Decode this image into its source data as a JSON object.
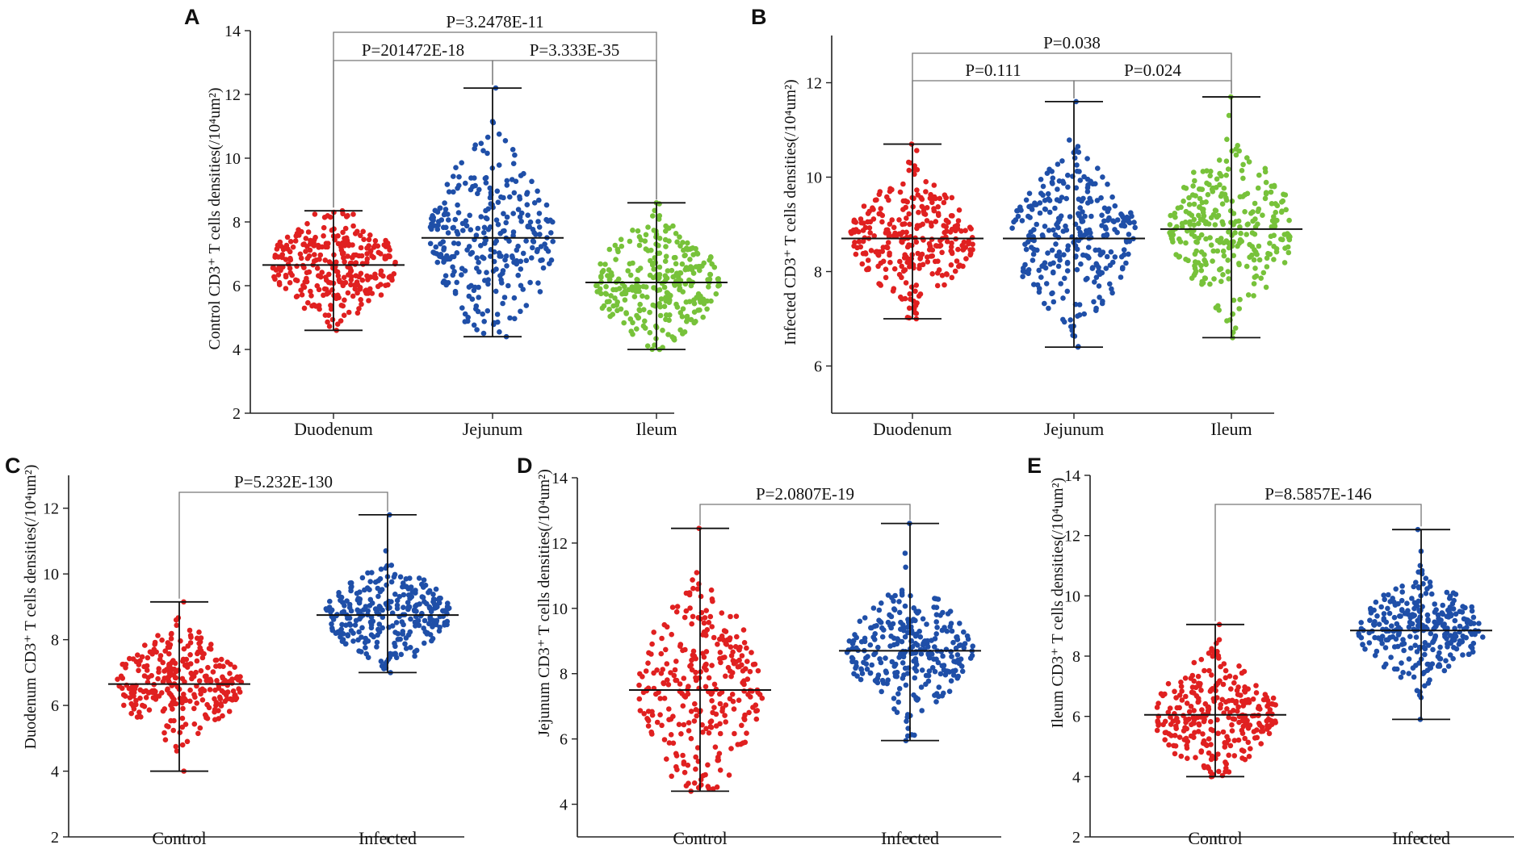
{
  "figure": {
    "colors": {
      "red": "#e02020",
      "blue": "#1f4fa8",
      "green": "#77c23a",
      "axis": "#222222",
      "bracket": "#777777"
    }
  },
  "chart_data": [
    {
      "id": "A",
      "panel": "A",
      "type": "scatter",
      "ylabel": "Control CD3⁺ T cells densities(/10⁴um²)",
      "ylim": [
        2,
        14
      ],
      "yticks": [
        2,
        4,
        6,
        8,
        10,
        12,
        14
      ],
      "categories": [
        "Duodenum",
        "Jejunum",
        "Ileum"
      ],
      "series": [
        {
          "name": "Duodenum",
          "color": "red",
          "mean": 6.65,
          "min": 4.6,
          "max": 8.35,
          "sd": 0.8,
          "n": 300
        },
        {
          "name": "Jejunum",
          "color": "blue",
          "mean": 7.5,
          "min": 4.4,
          "max": 12.2,
          "sd": 1.5,
          "n": 300
        },
        {
          "name": "Ileum",
          "color": "green",
          "mean": 6.1,
          "min": 4.0,
          "max": 8.6,
          "sd": 0.9,
          "n": 300
        }
      ],
      "comparisons": [
        {
          "from": 0,
          "to": 2,
          "label": "P=3.2478E-11",
          "level": 1
        },
        {
          "from": 0,
          "to": 1,
          "label": "P=201472E-18",
          "level": 0
        },
        {
          "from": 1,
          "to": 2,
          "label": "P=3.333E-35",
          "level": 0
        }
      ]
    },
    {
      "id": "B",
      "panel": "B",
      "type": "scatter",
      "ylabel": "Infected CD3⁺ T cells densities(/10⁴um²)",
      "ylim": [
        5,
        13
      ],
      "yticks": [
        6,
        8,
        10,
        12
      ],
      "categories": [
        "Duodenum",
        "Jejunum",
        "Ileum"
      ],
      "series": [
        {
          "name": "Duodenum",
          "color": "red",
          "mean": 8.7,
          "min": 7.0,
          "max": 10.7,
          "sd": 0.6,
          "n": 300
        },
        {
          "name": "Jejunum",
          "color": "blue",
          "mean": 8.7,
          "min": 6.4,
          "max": 11.6,
          "sd": 0.8,
          "n": 300
        },
        {
          "name": "Ileum",
          "color": "green",
          "mean": 8.9,
          "min": 6.6,
          "max": 11.7,
          "sd": 0.8,
          "n": 300
        }
      ],
      "comparisons": [
        {
          "from": 0,
          "to": 2,
          "label": "P=0.038",
          "level": 1
        },
        {
          "from": 0,
          "to": 1,
          "label": "P=0.111",
          "level": 0
        },
        {
          "from": 1,
          "to": 2,
          "label": "P=0.024",
          "level": 0
        }
      ]
    },
    {
      "id": "C",
      "panel": "C",
      "type": "scatter",
      "ylabel": "Duodenum CD3⁺ T cells densities(/10⁴um²)",
      "ylim": [
        2,
        13
      ],
      "yticks": [
        2,
        4,
        6,
        8,
        10,
        12
      ],
      "categories": [
        "Control",
        "Infected"
      ],
      "series": [
        {
          "name": "Control",
          "color": "red",
          "mean": 6.65,
          "min": 4.0,
          "max": 9.15,
          "sd": 0.8,
          "n": 300
        },
        {
          "name": "Infected",
          "color": "blue",
          "mean": 8.75,
          "min": 7.0,
          "max": 11.8,
          "sd": 0.7,
          "n": 300
        }
      ],
      "comparisons": [
        {
          "from": 0,
          "to": 1,
          "label": "P=5.232E-130",
          "level": 0
        }
      ]
    },
    {
      "id": "D",
      "panel": "D",
      "type": "scatter",
      "ylabel": "Jejunum CD3⁺ T cells densities(/10⁴um²)",
      "ylim": [
        3,
        14
      ],
      "yticks": [
        4,
        6,
        8,
        10,
        12,
        14
      ],
      "categories": [
        "Control",
        "Infected"
      ],
      "series": [
        {
          "name": "Control",
          "color": "red",
          "mean": 7.5,
          "min": 4.4,
          "max": 12.45,
          "sd": 1.5,
          "n": 300
        },
        {
          "name": "Infected",
          "color": "blue",
          "mean": 8.7,
          "min": 5.95,
          "max": 12.6,
          "sd": 0.9,
          "n": 300
        }
      ],
      "comparisons": [
        {
          "from": 0,
          "to": 1,
          "label": "P=2.0807E-19",
          "level": 0
        }
      ]
    },
    {
      "id": "E",
      "panel": "E",
      "type": "scatter",
      "ylabel": "Ileum CD3⁺ T cells densities(/10⁴um²)",
      "ylim": [
        2,
        14
      ],
      "yticks": [
        2,
        4,
        6,
        8,
        10,
        12,
        14
      ],
      "categories": [
        "Control",
        "Infected"
      ],
      "series": [
        {
          "name": "Control",
          "color": "red",
          "mean": 6.05,
          "min": 4.0,
          "max": 9.05,
          "sd": 0.9,
          "n": 300
        },
        {
          "name": "Infected",
          "color": "blue",
          "mean": 8.85,
          "min": 5.9,
          "max": 12.2,
          "sd": 0.8,
          "n": 300
        }
      ],
      "comparisons": [
        {
          "from": 0,
          "to": 1,
          "label": "P=8.5857E-146",
          "level": 0
        }
      ]
    }
  ]
}
